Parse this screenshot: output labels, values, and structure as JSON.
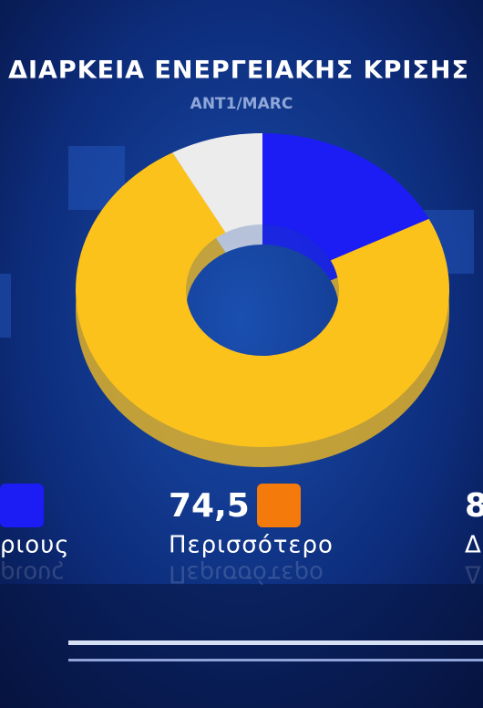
{
  "chart_data": {
    "type": "pie",
    "title": "ΔΙΑΡΚΕΙΑ ΕΝΕΡΓΕΙΑΚΗΣ ΚΡΙΣΗΣ",
    "subtitle": "ANT1/MARC",
    "categories": [
      "ριους",
      "Περισσότερο",
      "Δ"
    ],
    "values": [
      17.5,
      74.5,
      8
    ],
    "value_labels": [
      null,
      "74,5",
      "8"
    ],
    "colors": [
      "#1c1cf5",
      "#fcc21c",
      "#ececec"
    ],
    "legend_colors": [
      "#1c1cf5",
      "#f57a0c",
      "#ececec"
    ],
    "donut": true
  }
}
